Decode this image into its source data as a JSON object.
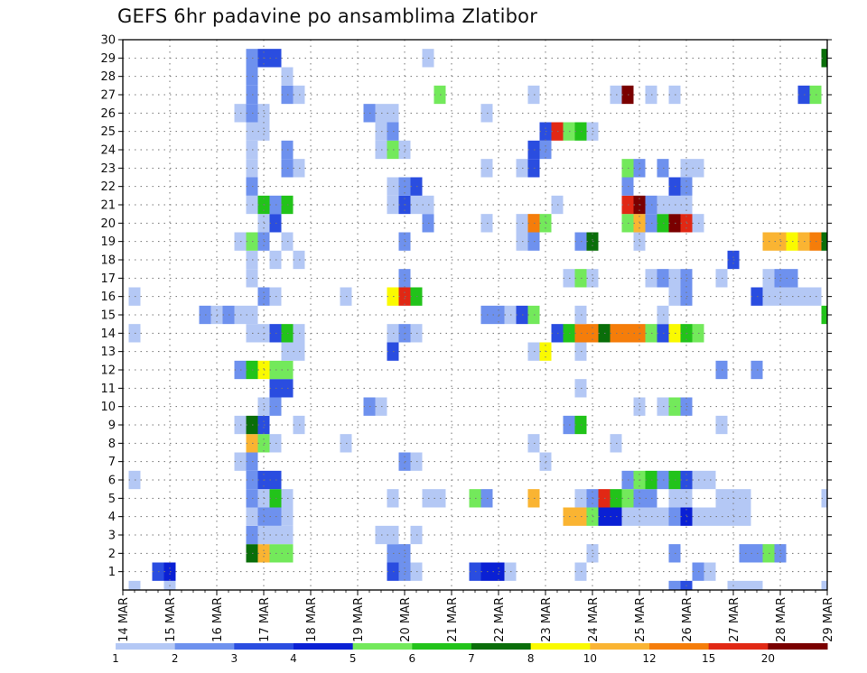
{
  "chart_data": {
    "type": "heatmap",
    "title": "GEFS 6hr padavine po ansamblima Zlatibor",
    "xlabel": "",
    "ylabel": "",
    "x_tick_labels": [
      "14 MAR",
      "15 MAR",
      "16 MAR",
      "17 MAR",
      "18 MAR",
      "19 MAR",
      "20 MAR",
      "21 MAR",
      "22 MAR",
      "23 MAR",
      "24 MAR",
      "25 MAR",
      "26 MAR",
      "27 MAR",
      "28 MAR",
      "29 MAR"
    ],
    "y_tick_labels": [
      "1",
      "2",
      "3",
      "4",
      "5",
      "6",
      "7",
      "8",
      "9",
      "10",
      "11",
      "12",
      "13",
      "14",
      "15",
      "16",
      "17",
      "18",
      "19",
      "20",
      "21",
      "22",
      "23",
      "24",
      "25",
      "26",
      "27",
      "28",
      "29",
      "30"
    ],
    "y_range": [
      0,
      30
    ],
    "time_steps": 61,
    "time_step_hours": 6,
    "color_levels": [
      "1",
      "2",
      "3",
      "4",
      "5",
      "6",
      "7",
      "8",
      "10",
      "12",
      "15",
      "20"
    ],
    "colors": [
      "#b4c8f5",
      "#6e91ee",
      "#2a4de0",
      "#0a20d4",
      "#73e95b",
      "#22c31a",
      "#0a6e0a",
      "#fafa00",
      "#fab432",
      "#f57d0a",
      "#e12814",
      "#7a0000"
    ],
    "cells": [
      [
        1,
        0,
        1
      ],
      [
        4,
        0,
        1
      ],
      [
        3,
        1,
        3
      ],
      [
        4,
        1,
        4
      ],
      [
        47,
        0,
        2
      ],
      [
        48,
        0,
        3
      ],
      [
        52,
        0,
        1
      ],
      [
        53,
        0,
        1
      ],
      [
        54,
        0,
        1
      ],
      [
        60,
        0,
        1
      ],
      [
        23,
        1,
        3
      ],
      [
        24,
        1,
        2
      ],
      [
        25,
        1,
        1
      ],
      [
        39,
        1,
        1
      ],
      [
        50,
        1,
        1
      ],
      [
        49,
        1,
        2
      ],
      [
        30,
        1,
        3
      ],
      [
        31,
        1,
        4
      ],
      [
        32,
        1,
        4
      ],
      [
        33,
        1,
        1
      ],
      [
        11,
        2,
        7
      ],
      [
        12,
        2,
        9
      ],
      [
        13,
        2,
        5
      ],
      [
        14,
        2,
        5
      ],
      [
        23,
        2,
        2
      ],
      [
        24,
        2,
        2
      ],
      [
        40,
        2,
        1
      ],
      [
        47,
        2,
        2
      ],
      [
        53,
        2,
        2
      ],
      [
        54,
        2,
        2
      ],
      [
        55,
        2,
        5
      ],
      [
        56,
        2,
        2
      ],
      [
        11,
        3,
        2
      ],
      [
        12,
        3,
        1
      ],
      [
        13,
        3,
        1
      ],
      [
        14,
        3,
        1
      ],
      [
        22,
        3,
        1
      ],
      [
        23,
        3,
        1
      ],
      [
        25,
        3,
        1
      ],
      [
        11,
        4,
        1
      ],
      [
        12,
        4,
        2
      ],
      [
        13,
        4,
        2
      ],
      [
        14,
        4,
        1
      ],
      [
        38,
        4,
        9
      ],
      [
        39,
        4,
        9
      ],
      [
        40,
        4,
        5
      ],
      [
        41,
        4,
        4
      ],
      [
        42,
        4,
        4
      ],
      [
        43,
        4,
        1
      ],
      [
        44,
        4,
        1
      ],
      [
        45,
        4,
        1
      ],
      [
        46,
        4,
        1
      ],
      [
        47,
        4,
        2
      ],
      [
        48,
        4,
        4
      ],
      [
        49,
        4,
        1
      ],
      [
        50,
        4,
        1
      ],
      [
        51,
        4,
        1
      ],
      [
        52,
        4,
        1
      ],
      [
        53,
        4,
        1
      ],
      [
        11,
        5,
        2
      ],
      [
        12,
        5,
        1
      ],
      [
        13,
        5,
        6
      ],
      [
        14,
        5,
        1
      ],
      [
        23,
        5,
        1
      ],
      [
        26,
        5,
        1
      ],
      [
        27,
        5,
        1
      ],
      [
        30,
        5,
        5
      ],
      [
        31,
        5,
        2
      ],
      [
        35,
        5,
        9
      ],
      [
        39,
        5,
        1
      ],
      [
        40,
        5,
        2
      ],
      [
        41,
        5,
        11
      ],
      [
        42,
        5,
        6
      ],
      [
        43,
        5,
        5
      ],
      [
        44,
        5,
        2
      ],
      [
        45,
        5,
        2
      ],
      [
        47,
        5,
        1
      ],
      [
        48,
        5,
        1
      ],
      [
        51,
        5,
        1
      ],
      [
        52,
        5,
        1
      ],
      [
        53,
        5,
        1
      ],
      [
        60,
        5,
        1
      ],
      [
        1,
        6,
        1
      ],
      [
        11,
        6,
        2
      ],
      [
        12,
        6,
        3
      ],
      [
        13,
        6,
        3
      ],
      [
        43,
        6,
        2
      ],
      [
        44,
        6,
        5
      ],
      [
        45,
        6,
        6
      ],
      [
        46,
        6,
        2
      ],
      [
        47,
        6,
        6
      ],
      [
        48,
        6,
        3
      ],
      [
        49,
        6,
        1
      ],
      [
        50,
        6,
        1
      ],
      [
        10,
        7,
        1
      ],
      [
        11,
        7,
        2
      ],
      [
        24,
        7,
        2
      ],
      [
        25,
        7,
        1
      ],
      [
        36,
        7,
        1
      ],
      [
        11,
        8,
        9
      ],
      [
        12,
        8,
        5
      ],
      [
        13,
        8,
        1
      ],
      [
        19,
        8,
        1
      ],
      [
        35,
        8,
        1
      ],
      [
        42,
        8,
        1
      ],
      [
        10,
        9,
        1
      ],
      [
        11,
        9,
        7
      ],
      [
        12,
        9,
        3
      ],
      [
        15,
        9,
        1
      ],
      [
        38,
        9,
        2
      ],
      [
        39,
        9,
        6
      ],
      [
        51,
        9,
        1
      ],
      [
        12,
        10,
        1
      ],
      [
        13,
        10,
        2
      ],
      [
        21,
        10,
        2
      ],
      [
        22,
        10,
        1
      ],
      [
        44,
        10,
        1
      ],
      [
        46,
        10,
        1
      ],
      [
        47,
        10,
        5
      ],
      [
        48,
        10,
        2
      ],
      [
        13,
        11,
        3
      ],
      [
        14,
        11,
        3
      ],
      [
        39,
        11,
        1
      ],
      [
        10,
        12,
        2
      ],
      [
        11,
        12,
        6
      ],
      [
        12,
        12,
        8
      ],
      [
        13,
        12,
        5
      ],
      [
        14,
        12,
        5
      ],
      [
        51,
        12,
        2
      ],
      [
        54,
        12,
        2
      ],
      [
        14,
        13,
        1
      ],
      [
        15,
        13,
        1
      ],
      [
        23,
        13,
        3
      ],
      [
        35,
        13,
        1
      ],
      [
        36,
        13,
        8
      ],
      [
        39,
        13,
        1
      ],
      [
        11,
        14,
        1
      ],
      [
        12,
        14,
        1
      ],
      [
        13,
        14,
        3
      ],
      [
        14,
        14,
        6
      ],
      [
        15,
        14,
        1
      ],
      [
        23,
        14,
        1
      ],
      [
        24,
        14,
        2
      ],
      [
        25,
        14,
        1
      ],
      [
        37,
        14,
        3
      ],
      [
        38,
        14,
        6
      ],
      [
        39,
        14,
        10
      ],
      [
        40,
        14,
        10
      ],
      [
        41,
        14,
        7
      ],
      [
        42,
        14,
        10
      ],
      [
        43,
        14,
        10
      ],
      [
        44,
        14,
        10
      ],
      [
        45,
        14,
        5
      ],
      [
        46,
        14,
        3
      ],
      [
        47,
        14,
        8
      ],
      [
        48,
        14,
        6
      ],
      [
        49,
        14,
        5
      ],
      [
        1,
        14,
        1
      ],
      [
        60,
        15,
        6
      ],
      [
        7,
        15,
        2
      ],
      [
        8,
        15,
        1
      ],
      [
        9,
        15,
        2
      ],
      [
        10,
        15,
        1
      ],
      [
        11,
        15,
        1
      ],
      [
        31,
        15,
        2
      ],
      [
        32,
        15,
        2
      ],
      [
        33,
        15,
        1
      ],
      [
        34,
        15,
        3
      ],
      [
        35,
        15,
        5
      ],
      [
        39,
        15,
        1
      ],
      [
        46,
        15,
        1
      ],
      [
        1,
        16,
        1
      ],
      [
        12,
        16,
        2
      ],
      [
        13,
        16,
        1
      ],
      [
        19,
        16,
        1
      ],
      [
        23,
        16,
        8
      ],
      [
        24,
        16,
        11
      ],
      [
        25,
        16,
        6
      ],
      [
        47,
        16,
        1
      ],
      [
        48,
        16,
        2
      ],
      [
        54,
        16,
        3
      ],
      [
        55,
        16,
        1
      ],
      [
        56,
        16,
        1
      ],
      [
        57,
        16,
        1
      ],
      [
        58,
        16,
        1
      ],
      [
        59,
        16,
        1
      ],
      [
        11,
        17,
        1
      ],
      [
        24,
        17,
        2
      ],
      [
        38,
        17,
        1
      ],
      [
        39,
        17,
        5
      ],
      [
        40,
        17,
        1
      ],
      [
        45,
        17,
        1
      ],
      [
        46,
        17,
        2
      ],
      [
        47,
        17,
        1
      ],
      [
        48,
        17,
        2
      ],
      [
        51,
        17,
        1
      ],
      [
        55,
        17,
        1
      ],
      [
        56,
        17,
        2
      ],
      [
        57,
        17,
        2
      ],
      [
        11,
        18,
        1
      ],
      [
        13,
        18,
        1
      ],
      [
        15,
        18,
        1
      ],
      [
        52,
        18,
        3
      ],
      [
        10,
        19,
        1
      ],
      [
        11,
        19,
        5
      ],
      [
        12,
        19,
        2
      ],
      [
        14,
        19,
        1
      ],
      [
        24,
        19,
        2
      ],
      [
        34,
        19,
        1
      ],
      [
        35,
        19,
        2
      ],
      [
        39,
        19,
        2
      ],
      [
        40,
        19,
        7
      ],
      [
        44,
        19,
        1
      ],
      [
        55,
        19,
        9
      ],
      [
        56,
        19,
        9
      ],
      [
        57,
        19,
        8
      ],
      [
        58,
        19,
        9
      ],
      [
        59,
        19,
        10
      ],
      [
        60,
        19,
        7
      ],
      [
        12,
        20,
        1
      ],
      [
        13,
        20,
        3
      ],
      [
        26,
        20,
        2
      ],
      [
        31,
        20,
        1
      ],
      [
        34,
        20,
        1
      ],
      [
        35,
        20,
        10
      ],
      [
        36,
        20,
        5
      ],
      [
        43,
        20,
        5
      ],
      [
        44,
        20,
        9
      ],
      [
        45,
        20,
        2
      ],
      [
        46,
        20,
        6
      ],
      [
        47,
        20,
        12
      ],
      [
        48,
        20,
        11
      ],
      [
        49,
        20,
        1
      ],
      [
        11,
        21,
        1
      ],
      [
        12,
        21,
        6
      ],
      [
        13,
        21,
        2
      ],
      [
        14,
        21,
        6
      ],
      [
        23,
        21,
        1
      ],
      [
        24,
        21,
        3
      ],
      [
        25,
        21,
        1
      ],
      [
        26,
        21,
        1
      ],
      [
        37,
        21,
        1
      ],
      [
        43,
        21,
        11
      ],
      [
        44,
        21,
        12
      ],
      [
        45,
        21,
        2
      ],
      [
        46,
        21,
        1
      ],
      [
        47,
        21,
        1
      ],
      [
        48,
        21,
        1
      ],
      [
        11,
        22,
        2
      ],
      [
        23,
        22,
        1
      ],
      [
        24,
        22,
        2
      ],
      [
        25,
        22,
        3
      ],
      [
        43,
        22,
        2
      ],
      [
        47,
        22,
        3
      ],
      [
        48,
        22,
        2
      ],
      [
        11,
        23,
        1
      ],
      [
        14,
        23,
        2
      ],
      [
        15,
        23,
        1
      ],
      [
        31,
        23,
        1
      ],
      [
        34,
        23,
        1
      ],
      [
        35,
        23,
        3
      ],
      [
        43,
        23,
        5
      ],
      [
        44,
        23,
        2
      ],
      [
        46,
        23,
        2
      ],
      [
        48,
        23,
        1
      ],
      [
        49,
        23,
        1
      ],
      [
        11,
        24,
        1
      ],
      [
        14,
        24,
        2
      ],
      [
        22,
        24,
        1
      ],
      [
        23,
        24,
        5
      ],
      [
        24,
        24,
        1
      ],
      [
        35,
        24,
        3
      ],
      [
        36,
        24,
        2
      ],
      [
        11,
        25,
        1
      ],
      [
        12,
        25,
        1
      ],
      [
        22,
        25,
        1
      ],
      [
        23,
        25,
        2
      ],
      [
        36,
        25,
        3
      ],
      [
        37,
        25,
        11
      ],
      [
        38,
        25,
        5
      ],
      [
        39,
        25,
        6
      ],
      [
        40,
        25,
        1
      ],
      [
        10,
        26,
        1
      ],
      [
        11,
        26,
        2
      ],
      [
        12,
        26,
        1
      ],
      [
        21,
        26,
        2
      ],
      [
        22,
        26,
        1
      ],
      [
        23,
        26,
        1
      ],
      [
        31,
        26,
        1
      ],
      [
        11,
        27,
        2
      ],
      [
        14,
        27,
        2
      ],
      [
        15,
        27,
        1
      ],
      [
        27,
        27,
        5
      ],
      [
        35,
        27,
        1
      ],
      [
        42,
        27,
        1
      ],
      [
        43,
        27,
        12
      ],
      [
        45,
        27,
        1
      ],
      [
        47,
        27,
        1
      ],
      [
        58,
        27,
        3
      ],
      [
        59,
        27,
        5
      ],
      [
        11,
        28,
        2
      ],
      [
        14,
        28,
        1
      ],
      [
        11,
        29,
        2
      ],
      [
        12,
        29,
        3
      ],
      [
        13,
        29,
        3
      ],
      [
        26,
        29,
        1
      ],
      [
        60,
        29,
        7
      ]
    ]
  }
}
